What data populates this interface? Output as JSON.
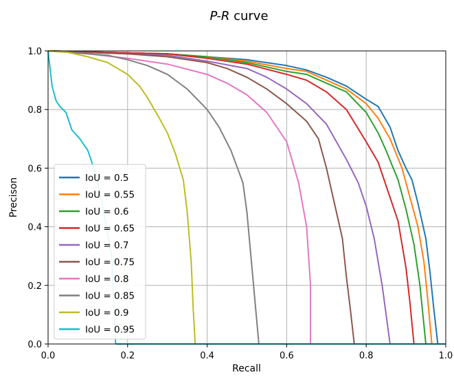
{
  "chart_data": {
    "type": "line",
    "title_italic": "P-R",
    "title_rest": " curve",
    "xlabel": "Recall",
    "ylabel": "Precison",
    "xlim": [
      0,
      1
    ],
    "ylim": [
      0,
      1
    ],
    "xticks": [
      "0.0",
      "0.2",
      "0.4",
      "0.6",
      "0.8",
      "1.0"
    ],
    "yticks": [
      "0.0",
      "0.2",
      "0.4",
      "0.6",
      "0.8",
      "1.0"
    ],
    "grid": true,
    "legend_position": "lower-left",
    "series": [
      {
        "name": "IoU = 0.5",
        "color": "#1f77b4",
        "points": [
          [
            0,
            1.0
          ],
          [
            0.3,
            0.99
          ],
          [
            0.4,
            0.98
          ],
          [
            0.5,
            0.97
          ],
          [
            0.6,
            0.95
          ],
          [
            0.65,
            0.935
          ],
          [
            0.7,
            0.91
          ],
          [
            0.75,
            0.88
          ],
          [
            0.8,
            0.835
          ],
          [
            0.83,
            0.81
          ],
          [
            0.86,
            0.74
          ],
          [
            0.88,
            0.66
          ],
          [
            0.9,
            0.6
          ],
          [
            0.915,
            0.56
          ],
          [
            0.93,
            0.48
          ],
          [
            0.95,
            0.36
          ],
          [
            0.96,
            0.25
          ],
          [
            0.97,
            0.12
          ],
          [
            0.98,
            0.0
          ]
        ]
      },
      {
        "name": "IoU = 0.55",
        "color": "#ff7f0e",
        "points": [
          [
            0,
            1.0
          ],
          [
            0.3,
            0.99
          ],
          [
            0.4,
            0.98
          ],
          [
            0.5,
            0.965
          ],
          [
            0.6,
            0.94
          ],
          [
            0.65,
            0.93
          ],
          [
            0.7,
            0.9
          ],
          [
            0.75,
            0.87
          ],
          [
            0.8,
            0.82
          ],
          [
            0.83,
            0.77
          ],
          [
            0.86,
            0.7
          ],
          [
            0.89,
            0.6
          ],
          [
            0.91,
            0.5
          ],
          [
            0.93,
            0.4
          ],
          [
            0.945,
            0.28
          ],
          [
            0.955,
            0.15
          ],
          [
            0.965,
            0.0
          ]
        ]
      },
      {
        "name": "IoU = 0.6",
        "color": "#2ca02c",
        "points": [
          [
            0,
            1.0
          ],
          [
            0.3,
            0.99
          ],
          [
            0.4,
            0.98
          ],
          [
            0.5,
            0.96
          ],
          [
            0.6,
            0.93
          ],
          [
            0.65,
            0.92
          ],
          [
            0.7,
            0.89
          ],
          [
            0.75,
            0.86
          ],
          [
            0.8,
            0.79
          ],
          [
            0.83,
            0.72
          ],
          [
            0.85,
            0.66
          ],
          [
            0.88,
            0.56
          ],
          [
            0.9,
            0.46
          ],
          [
            0.92,
            0.34
          ],
          [
            0.935,
            0.2
          ],
          [
            0.95,
            0.0
          ]
        ]
      },
      {
        "name": "IoU = 0.65",
        "color": "#d62728",
        "points": [
          [
            0,
            1.0
          ],
          [
            0.3,
            0.99
          ],
          [
            0.4,
            0.975
          ],
          [
            0.5,
            0.955
          ],
          [
            0.6,
            0.92
          ],
          [
            0.65,
            0.9
          ],
          [
            0.7,
            0.86
          ],
          [
            0.75,
            0.8
          ],
          [
            0.8,
            0.69
          ],
          [
            0.83,
            0.62
          ],
          [
            0.86,
            0.5
          ],
          [
            0.88,
            0.42
          ],
          [
            0.9,
            0.26
          ],
          [
            0.91,
            0.14
          ],
          [
            0.92,
            0.0
          ]
        ]
      },
      {
        "name": "IoU = 0.7",
        "color": "#9467bd",
        "points": [
          [
            0,
            1.0
          ],
          [
            0.3,
            0.985
          ],
          [
            0.4,
            0.965
          ],
          [
            0.5,
            0.94
          ],
          [
            0.55,
            0.91
          ],
          [
            0.6,
            0.87
          ],
          [
            0.65,
            0.82
          ],
          [
            0.7,
            0.75
          ],
          [
            0.75,
            0.63
          ],
          [
            0.78,
            0.55
          ],
          [
            0.8,
            0.47
          ],
          [
            0.82,
            0.36
          ],
          [
            0.84,
            0.2
          ],
          [
            0.86,
            0.0
          ]
        ]
      },
      {
        "name": "IoU = 0.75",
        "color": "#8c564b",
        "points": [
          [
            0,
            1.0
          ],
          [
            0.2,
            0.99
          ],
          [
            0.3,
            0.98
          ],
          [
            0.4,
            0.96
          ],
          [
            0.45,
            0.94
          ],
          [
            0.5,
            0.91
          ],
          [
            0.55,
            0.87
          ],
          [
            0.6,
            0.82
          ],
          [
            0.65,
            0.76
          ],
          [
            0.68,
            0.7
          ],
          [
            0.7,
            0.6
          ],
          [
            0.72,
            0.48
          ],
          [
            0.74,
            0.36
          ],
          [
            0.75,
            0.23
          ],
          [
            0.76,
            0.12
          ],
          [
            0.77,
            0.0
          ]
        ]
      },
      {
        "name": "IoU = 0.8",
        "color": "#e377c2",
        "points": [
          [
            0,
            1.0
          ],
          [
            0.1,
            0.99
          ],
          [
            0.2,
            0.975
          ],
          [
            0.3,
            0.955
          ],
          [
            0.4,
            0.92
          ],
          [
            0.45,
            0.89
          ],
          [
            0.5,
            0.85
          ],
          [
            0.55,
            0.79
          ],
          [
            0.6,
            0.69
          ],
          [
            0.63,
            0.55
          ],
          [
            0.65,
            0.4
          ],
          [
            0.66,
            0.2
          ],
          [
            0.66,
            0.0
          ]
        ]
      },
      {
        "name": "IoU = 0.85",
        "color": "#7f7f7f",
        "points": [
          [
            0,
            1.0
          ],
          [
            0.1,
            0.99
          ],
          [
            0.15,
            0.985
          ],
          [
            0.2,
            0.97
          ],
          [
            0.25,
            0.95
          ],
          [
            0.3,
            0.92
          ],
          [
            0.35,
            0.87
          ],
          [
            0.4,
            0.8
          ],
          [
            0.43,
            0.74
          ],
          [
            0.46,
            0.66
          ],
          [
            0.49,
            0.55
          ],
          [
            0.5,
            0.45
          ],
          [
            0.51,
            0.3
          ],
          [
            0.52,
            0.15
          ],
          [
            0.53,
            0.0
          ]
        ]
      },
      {
        "name": "IoU = 0.9",
        "color": "#bcbd22",
        "points": [
          [
            0,
            1.0
          ],
          [
            0.05,
            0.995
          ],
          [
            0.1,
            0.98
          ],
          [
            0.15,
            0.96
          ],
          [
            0.2,
            0.92
          ],
          [
            0.23,
            0.88
          ],
          [
            0.25,
            0.84
          ],
          [
            0.28,
            0.77
          ],
          [
            0.3,
            0.72
          ],
          [
            0.32,
            0.65
          ],
          [
            0.34,
            0.56
          ],
          [
            0.35,
            0.45
          ],
          [
            0.36,
            0.28
          ],
          [
            0.365,
            0.12
          ],
          [
            0.37,
            0.0
          ]
        ]
      },
      {
        "name": "IoU = 0.95",
        "color": "#17becf",
        "points": [
          [
            0,
            1.0
          ],
          [
            0.01,
            0.88
          ],
          [
            0.02,
            0.83
          ],
          [
            0.03,
            0.81
          ],
          [
            0.045,
            0.79
          ],
          [
            0.06,
            0.73
          ],
          [
            0.08,
            0.7
          ],
          [
            0.1,
            0.66
          ],
          [
            0.12,
            0.58
          ],
          [
            0.14,
            0.45
          ],
          [
            0.16,
            0.3
          ],
          [
            0.165,
            0.15
          ],
          [
            0.17,
            0.0
          ]
        ]
      }
    ]
  }
}
